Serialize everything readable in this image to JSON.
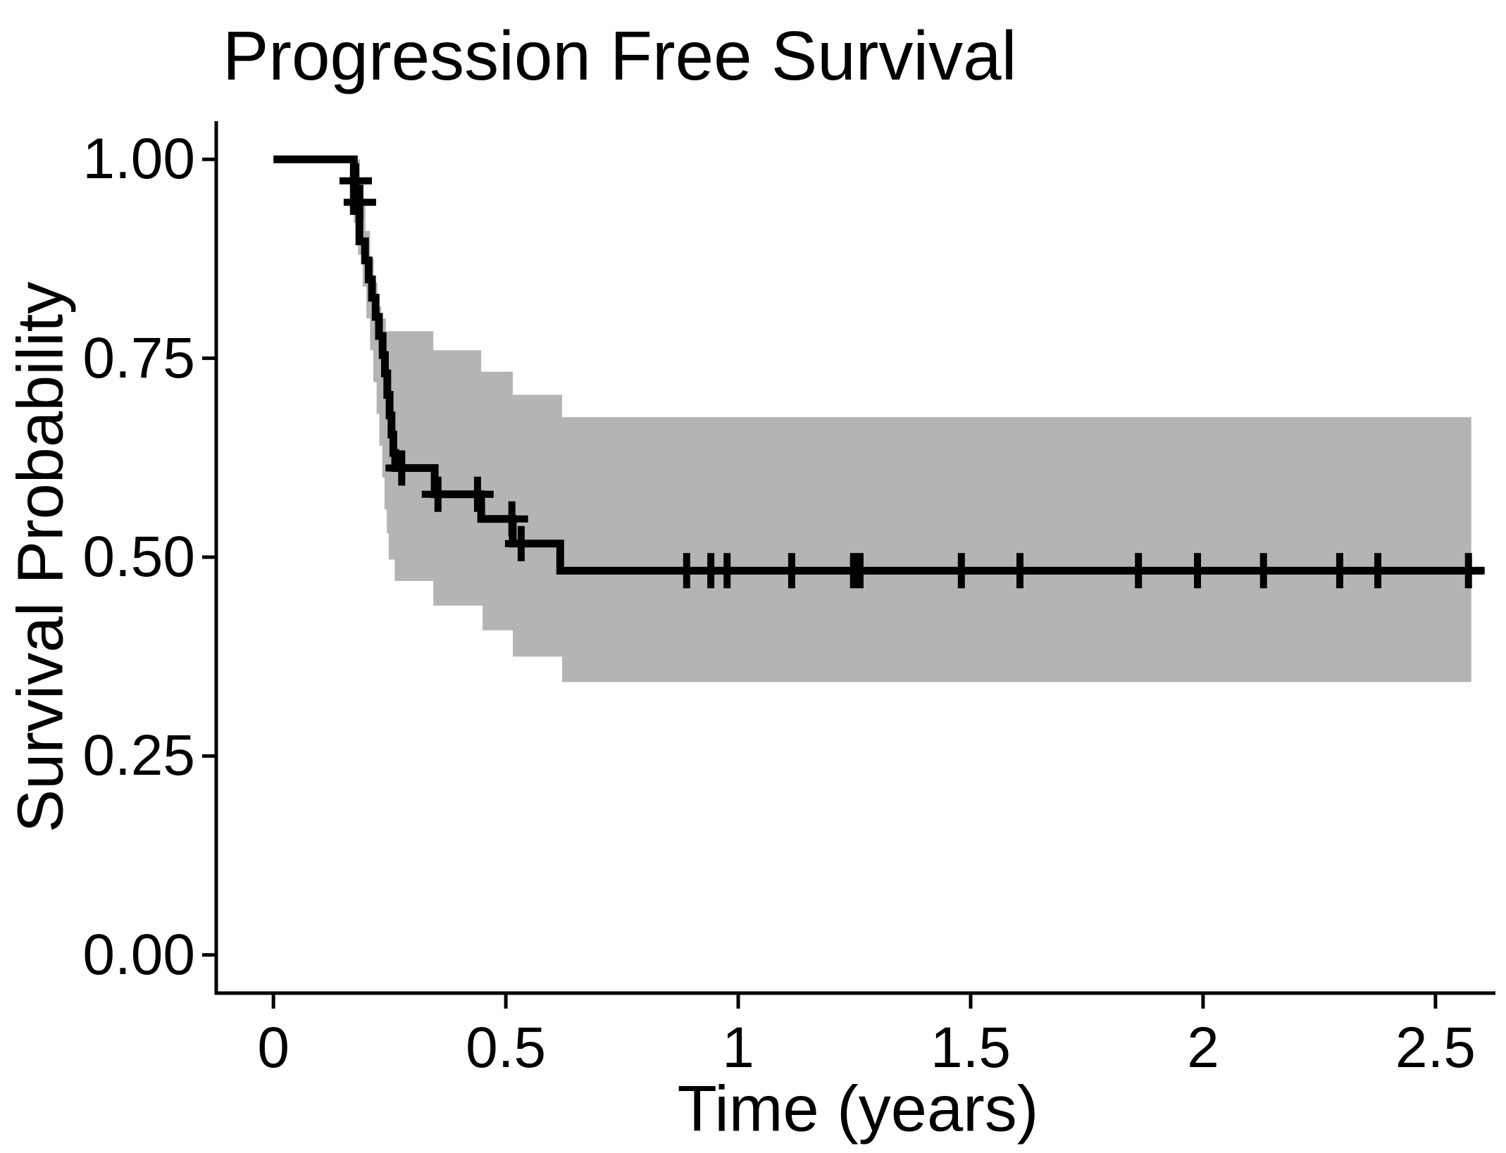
{
  "chart_data": {
    "type": "line",
    "subtype": "kaplan-meier-step",
    "title": "Progression Free Survival",
    "xlabel": "Time (years)",
    "ylabel": "Survival Probability",
    "legend": "none",
    "grid": false,
    "xlim": [
      -0.123,
      2.629
    ],
    "ylim": [
      -0.048,
      1.048
    ],
    "x_ticks": [
      {
        "v": 0,
        "label": "0"
      },
      {
        "v": 0.5,
        "label": "0.5"
      },
      {
        "v": 1,
        "label": "1"
      },
      {
        "v": 1.5,
        "label": "1.5"
      },
      {
        "v": 2,
        "label": "2"
      },
      {
        "v": 2.5,
        "label": "2.5"
      }
    ],
    "y_ticks": [
      {
        "v": 0,
        "label": "0.00"
      },
      {
        "v": 0.25,
        "label": "0.25"
      },
      {
        "v": 0.5,
        "label": "0.50"
      },
      {
        "v": 0.75,
        "label": "0.75"
      },
      {
        "v": 1,
        "label": "1.00"
      }
    ],
    "colors": {
      "curve": "#000000",
      "band": "#b4b4b4",
      "axis": "#000000",
      "text": "#000000"
    },
    "km_steps": [
      [
        0,
        1.0
      ],
      [
        0.173,
        1.0
      ],
      [
        0.173,
        0.935
      ],
      [
        0.185,
        0.935
      ],
      [
        0.185,
        0.897
      ],
      [
        0.197,
        0.897
      ],
      [
        0.197,
        0.873
      ],
      [
        0.205,
        0.873
      ],
      [
        0.205,
        0.849
      ],
      [
        0.212,
        0.849
      ],
      [
        0.212,
        0.826
      ],
      [
        0.22,
        0.826
      ],
      [
        0.22,
        0.802
      ],
      [
        0.227,
        0.802
      ],
      [
        0.227,
        0.778
      ],
      [
        0.235,
        0.778
      ],
      [
        0.235,
        0.754
      ],
      [
        0.24,
        0.754
      ],
      [
        0.24,
        0.731
      ],
      [
        0.245,
        0.731
      ],
      [
        0.245,
        0.704
      ],
      [
        0.25,
        0.704
      ],
      [
        0.25,
        0.678
      ],
      [
        0.254,
        0.678
      ],
      [
        0.254,
        0.654
      ],
      [
        0.258,
        0.654
      ],
      [
        0.258,
        0.631
      ],
      [
        0.262,
        0.631
      ],
      [
        0.262,
        0.612
      ],
      [
        0.347,
        0.612
      ],
      [
        0.347,
        0.579
      ],
      [
        0.447,
        0.579
      ],
      [
        0.447,
        0.548
      ],
      [
        0.515,
        0.548
      ],
      [
        0.515,
        0.517
      ],
      [
        0.617,
        0.517
      ],
      [
        0.617,
        0.483
      ],
      [
        2.605,
        0.483
      ]
    ],
    "censor_marks": [
      [
        0.177,
        0.973
      ],
      [
        0.186,
        0.946
      ],
      [
        0.276,
        0.612
      ],
      [
        0.354,
        0.579
      ],
      [
        0.439,
        0.579
      ],
      [
        0.513,
        0.548
      ],
      [
        0.533,
        0.517
      ],
      [
        0.889,
        0.483
      ],
      [
        0.941,
        0.483
      ],
      [
        0.976,
        0.483
      ],
      [
        1.115,
        0.483
      ],
      [
        1.248,
        0.483
      ],
      [
        1.262,
        0.483
      ],
      [
        1.48,
        0.483
      ],
      [
        1.606,
        0.483
      ],
      [
        1.861,
        0.483
      ],
      [
        1.988,
        0.483
      ],
      [
        2.13,
        0.483
      ],
      [
        2.294,
        0.483
      ],
      [
        2.376,
        0.483
      ],
      [
        2.571,
        0.483
      ]
    ],
    "ci_upper": [
      [
        0.173,
        1.0
      ],
      [
        0.186,
        1.0
      ],
      [
        0.186,
        0.95
      ],
      [
        0.198,
        0.95
      ],
      [
        0.198,
        0.91
      ],
      [
        0.208,
        0.91
      ],
      [
        0.208,
        0.875
      ],
      [
        0.216,
        0.875
      ],
      [
        0.216,
        0.845
      ],
      [
        0.224,
        0.845
      ],
      [
        0.224,
        0.815
      ],
      [
        0.232,
        0.815
      ],
      [
        0.232,
        0.8
      ],
      [
        0.242,
        0.8
      ],
      [
        0.242,
        0.784
      ],
      [
        0.344,
        0.784
      ],
      [
        0.344,
        0.76
      ],
      [
        0.447,
        0.76
      ],
      [
        0.447,
        0.733
      ],
      [
        0.515,
        0.733
      ],
      [
        0.515,
        0.704
      ],
      [
        0.621,
        0.704
      ],
      [
        0.621,
        0.676
      ],
      [
        2.577,
        0.676
      ]
    ],
    "ci_lower": [
      [
        0.173,
        1.0
      ],
      [
        0.173,
        0.92
      ],
      [
        0.182,
        0.92
      ],
      [
        0.182,
        0.88
      ],
      [
        0.192,
        0.88
      ],
      [
        0.192,
        0.84
      ],
      [
        0.2,
        0.84
      ],
      [
        0.2,
        0.8
      ],
      [
        0.208,
        0.8
      ],
      [
        0.208,
        0.76
      ],
      [
        0.215,
        0.76
      ],
      [
        0.215,
        0.72
      ],
      [
        0.222,
        0.72
      ],
      [
        0.222,
        0.68
      ],
      [
        0.228,
        0.68
      ],
      [
        0.228,
        0.64
      ],
      [
        0.234,
        0.64
      ],
      [
        0.234,
        0.6
      ],
      [
        0.239,
        0.6
      ],
      [
        0.239,
        0.56
      ],
      [
        0.244,
        0.56
      ],
      [
        0.244,
        0.53
      ],
      [
        0.248,
        0.53
      ],
      [
        0.248,
        0.497
      ],
      [
        0.261,
        0.497
      ],
      [
        0.261,
        0.47
      ],
      [
        0.344,
        0.47
      ],
      [
        0.344,
        0.439
      ],
      [
        0.45,
        0.439
      ],
      [
        0.45,
        0.408
      ],
      [
        0.515,
        0.408
      ],
      [
        0.515,
        0.375
      ],
      [
        0.621,
        0.375
      ],
      [
        0.621,
        0.343
      ],
      [
        2.577,
        0.343
      ]
    ]
  }
}
